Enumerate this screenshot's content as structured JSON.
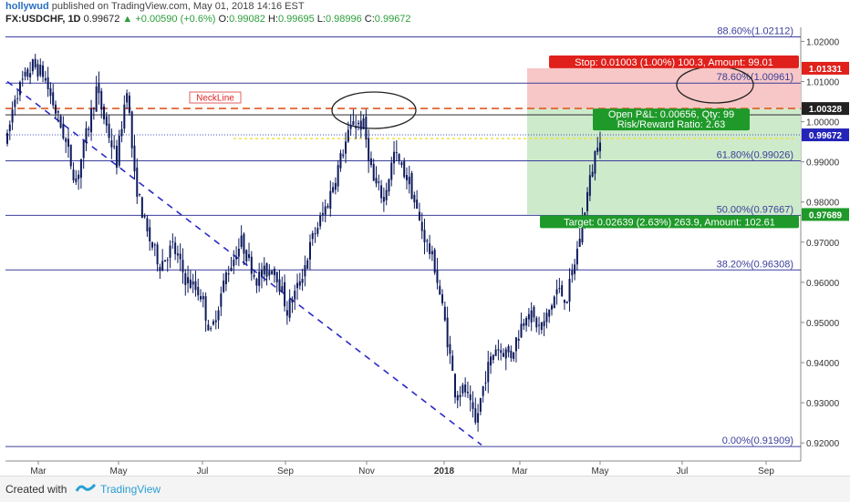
{
  "header": {
    "author": "hollywud",
    "published_text": "published on TradingView.com, May 01, 2018 14:16 EST",
    "symbol_line": "FX:USDCHF, 1D",
    "last": "0.99672",
    "change": "▲ +0.00590 (+0.6%)",
    "open_label": "O:",
    "open": "0.99082",
    "high_label": "H:",
    "high": "0.99695",
    "low_label": "L:",
    "low": "0.98996",
    "close_label": "C:",
    "close": "0.99672"
  },
  "footer": {
    "created_with": "Created with",
    "brand": "TradingView"
  },
  "colors": {
    "candle": "#0d1a5c",
    "fib": "#3b3f9a",
    "stop_zone": "#f7c6c6",
    "target_zone": "#cdeacb",
    "stop_label": "#e0201b",
    "target_label": "#1f9a2a",
    "price_label": "#2424b8",
    "neckline": "#e05a22",
    "trend": "#2a2ac8"
  },
  "chart_data": {
    "type": "candlestick",
    "y_axis": {
      "min": 0.9155,
      "max": 1.0235,
      "ticks": [
        "1.02000",
        "1.01000",
        "1.00000",
        "0.99000",
        "0.98000",
        "0.97000",
        "0.96000",
        "0.95000",
        "0.94000",
        "0.93000",
        "0.92000"
      ]
    },
    "x_axis": {
      "ticks": [
        "Mar",
        "May",
        "Jul",
        "Sep",
        "Nov",
        "2018",
        "Mar",
        "May",
        "Jul",
        "Sep"
      ]
    },
    "price_path": [
      {
        "t": 0,
        "v": 0.9955
      },
      {
        "t": 3,
        "v": 1.0065
      },
      {
        "t": 10,
        "v": 1.014
      },
      {
        "t": 14,
        "v": 1.012
      },
      {
        "t": 22,
        "v": 0.997
      },
      {
        "t": 27,
        "v": 0.985
      },
      {
        "t": 35,
        "v": 1.008
      },
      {
        "t": 38,
        "v": 1.001
      },
      {
        "t": 43,
        "v": 0.99
      },
      {
        "t": 47,
        "v": 1.009
      },
      {
        "t": 50,
        "v": 0.986
      },
      {
        "t": 55,
        "v": 0.972
      },
      {
        "t": 60,
        "v": 0.9645
      },
      {
        "t": 65,
        "v": 0.969
      },
      {
        "t": 70,
        "v": 0.961
      },
      {
        "t": 76,
        "v": 0.957
      },
      {
        "t": 80,
        "v": 0.947
      },
      {
        "t": 86,
        "v": 0.962
      },
      {
        "t": 92,
        "v": 0.97
      },
      {
        "t": 98,
        "v": 0.961
      },
      {
        "t": 105,
        "v": 0.964
      },
      {
        "t": 110,
        "v": 0.953
      },
      {
        "t": 115,
        "v": 0.96
      },
      {
        "t": 120,
        "v": 0.971
      },
      {
        "t": 126,
        "v": 0.98
      },
      {
        "t": 132,
        "v": 0.993
      },
      {
        "t": 136,
        "v": 1.0
      },
      {
        "t": 140,
        "v": 0.999
      },
      {
        "t": 144,
        "v": 0.985
      },
      {
        "t": 148,
        "v": 0.981
      },
      {
        "t": 152,
        "v": 0.992
      },
      {
        "t": 158,
        "v": 0.985
      },
      {
        "t": 162,
        "v": 0.975
      },
      {
        "t": 168,
        "v": 0.964
      },
      {
        "t": 172,
        "v": 0.95
      },
      {
        "t": 176,
        "v": 0.933
      },
      {
        "t": 180,
        "v": 0.933
      },
      {
        "t": 184,
        "v": 0.9245
      },
      {
        "t": 188,
        "v": 0.937
      },
      {
        "t": 192,
        "v": 0.944
      },
      {
        "t": 198,
        "v": 0.942
      },
      {
        "t": 204,
        "v": 0.953
      },
      {
        "t": 210,
        "v": 0.948
      },
      {
        "t": 216,
        "v": 0.958
      },
      {
        "t": 220,
        "v": 0.956
      },
      {
        "t": 224,
        "v": 0.968
      },
      {
        "t": 228,
        "v": 0.982
      },
      {
        "t": 231,
        "v": 0.992
      },
      {
        "t": 233,
        "v": 0.9967
      }
    ],
    "fib_levels": [
      {
        "label": "88.60%(1.02112)",
        "value": 1.02112
      },
      {
        "label": "78.60%(1.00961)",
        "value": 1.00961
      },
      {
        "label": "61.80%(0.99026)",
        "value": 0.99026
      },
      {
        "label": "50.00%(0.97667)",
        "value": 0.97667
      },
      {
        "label": "38.20%(0.96308)",
        "value": 0.96308
      },
      {
        "label": "0.00%(0.91909)",
        "value": 0.91909
      }
    ],
    "neckline": {
      "label": "NeckLine",
      "value": 1.0033
    },
    "position": {
      "entry": 1.00328,
      "stop": 1.01331,
      "target": 0.97689,
      "stop_text": "Stop: 0.01003 (1.00%) 100.3, Amount: 99.01",
      "target_text": "Target: 0.02639 (2.63%) 263.9, Amount: 102.61",
      "pnl_text": "Open P&L: 0.00656, Qty: 99",
      "rr_text": "Risk/Reward Ratio: 2.63"
    },
    "price_labels": [
      {
        "text": "1.01331",
        "value": 1.01331,
        "color": "#e0201b"
      },
      {
        "text": "1.00328",
        "value": 1.00328,
        "color": "#222222"
      },
      {
        "text": "0.99672",
        "value": 0.99672,
        "color": "#2424b8"
      },
      {
        "text": "0.97689",
        "value": 0.97689,
        "color": "#1f9a2a"
      }
    ]
  }
}
